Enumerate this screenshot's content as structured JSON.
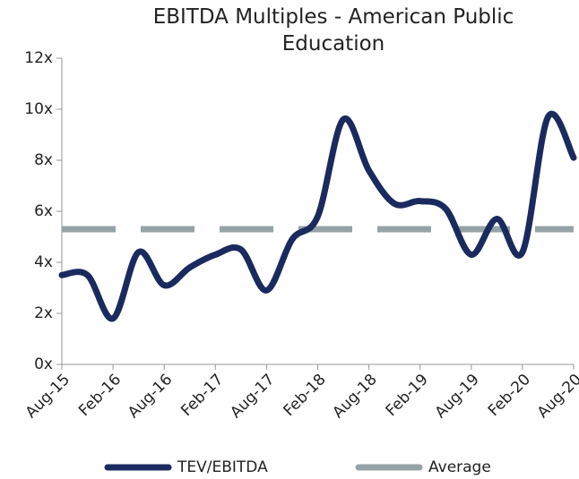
{
  "chart_data": {
    "type": "line",
    "title": "EBITDA Multiples - American Public Education",
    "categories": [
      "Aug-15",
      null,
      "Feb-16",
      null,
      "Aug-16",
      null,
      "Feb-17",
      null,
      "Aug-17",
      null,
      "Feb-18",
      null,
      "Aug-18",
      null,
      "Feb-19",
      null,
      "Aug-19",
      null,
      "Feb-20",
      null,
      "Aug-20"
    ],
    "series": [
      {
        "name": "TEV/EBITDA",
        "color": "#1b2a5e",
        "values": [
          3.5,
          3.5,
          1.8,
          4.4,
          3.1,
          3.8,
          4.3,
          4.5,
          2.9,
          4.9,
          5.8,
          9.6,
          7.6,
          6.3,
          6.4,
          6.1,
          4.3,
          5.7,
          4.4,
          9.7,
          8.1
        ]
      },
      {
        "name": "Average",
        "color": "#95a3a6",
        "dashed": true,
        "values": [
          5.3,
          5.3,
          5.3,
          5.3,
          5.3,
          5.3,
          5.3,
          5.3,
          5.3,
          5.3,
          5.3,
          5.3,
          5.3,
          5.3,
          5.3,
          5.3,
          5.3,
          5.3,
          5.3,
          5.3,
          5.3
        ]
      }
    ],
    "ylim": [
      0,
      12
    ],
    "yticks": [
      {
        "value": 0,
        "label": "0x"
      },
      {
        "value": 2,
        "label": "2x"
      },
      {
        "value": 4,
        "label": "4x"
      },
      {
        "value": 6,
        "label": "6x"
      },
      {
        "value": 8,
        "label": "8x"
      },
      {
        "value": 10,
        "label": "10x"
      },
      {
        "value": 12,
        "label": "12x"
      }
    ],
    "legend": "bottom"
  }
}
